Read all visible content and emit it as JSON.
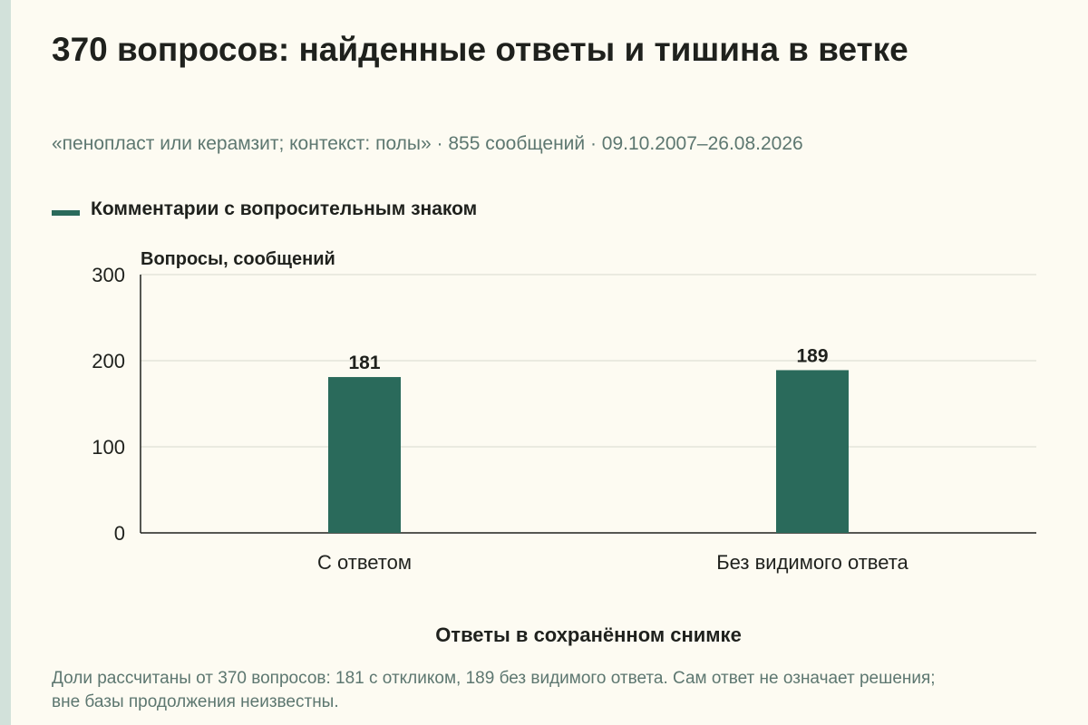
{
  "title": "370 вопросов: найденные ответы и тишина в ветке",
  "subtitle": "«пенопласт или керамзит; контекст: полы» · 855 сообщений · 09.10.2007–26.08.2026",
  "footnote": "Доли рассчитаны от 370 вопросов: 181 с откликом, 189 без видимого ответа. Сам ответ не означает решения; вне базы продолжения неизвестны.",
  "colors": {
    "bar": "#2a6a5b",
    "background": "#fdfbf2",
    "muted_text": "#5d7770"
  },
  "chart_data": {
    "type": "bar",
    "ylabel": "Вопросы, сообщений",
    "xlabel": "Ответы в сохранённом снимке",
    "categories": [
      "С ответом",
      "Без видимого ответа"
    ],
    "series": [
      {
        "name": "Комментарии с вопросительным знаком",
        "values": [
          181,
          189
        ]
      }
    ],
    "data_labels": [
      "181",
      "189"
    ],
    "yticks": [
      "0",
      "100",
      "200",
      "300"
    ],
    "ylim": [
      0,
      300
    ],
    "grid": "horizontal",
    "legend": "top-left"
  }
}
